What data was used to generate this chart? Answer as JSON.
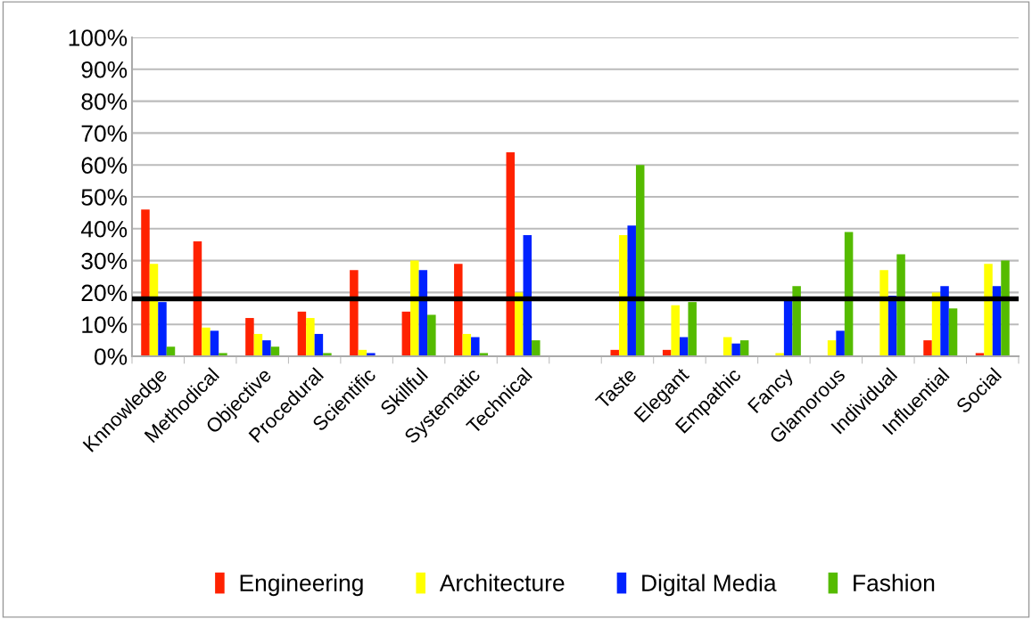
{
  "chart_data": {
    "type": "bar",
    "categories": [
      "Knnowledge",
      "Methodical",
      "Objective",
      "Procedural",
      "Scientific",
      "Skillful",
      "Systematic",
      "Technical",
      null,
      "Taste",
      "Elegant",
      "Empathic",
      "Fancy",
      "Glamorous",
      "Individual",
      "Influential",
      "Social"
    ],
    "series": [
      {
        "name": "Engineering",
        "color": "#ff2200",
        "values": [
          46,
          36,
          12,
          14,
          27,
          14,
          29,
          64,
          null,
          2,
          2,
          0,
          0,
          0,
          0,
          5,
          1
        ]
      },
      {
        "name": "Architecture",
        "color": "#ffff00",
        "values": [
          29,
          9,
          7,
          12,
          2,
          30,
          7,
          20,
          null,
          38,
          16,
          6,
          1,
          5,
          27,
          20,
          29
        ]
      },
      {
        "name": "Digital Media",
        "color": "#0022ff",
        "values": [
          17,
          8,
          5,
          7,
          1,
          27,
          6,
          38,
          null,
          41,
          6,
          4,
          18,
          8,
          19,
          22,
          22
        ]
      },
      {
        "name": "Fashion",
        "color": "#55bb00",
        "values": [
          3,
          1,
          3,
          1,
          0,
          13,
          1,
          5,
          null,
          60,
          17,
          5,
          22,
          39,
          32,
          15,
          30
        ]
      }
    ],
    "ylim": [
      0,
      100
    ],
    "yticks": [
      {
        "value": 0,
        "label": "0%"
      },
      {
        "value": 10,
        "label": "10%"
      },
      {
        "value": 20,
        "label": "20%"
      },
      {
        "value": 30,
        "label": "30%"
      },
      {
        "value": 40,
        "label": "40%"
      },
      {
        "value": 50,
        "label": "50%"
      },
      {
        "value": 60,
        "label": "60%"
      },
      {
        "value": 70,
        "label": "70%"
      },
      {
        "value": 80,
        "label": "80%"
      },
      {
        "value": 90,
        "label": "90%"
      },
      {
        "value": 100,
        "label": "100%"
      }
    ],
    "ref_lines": [
      {
        "axis": "y",
        "value": 18,
        "color": "#000000"
      }
    ],
    "grid": "y",
    "legend": "bottom"
  }
}
